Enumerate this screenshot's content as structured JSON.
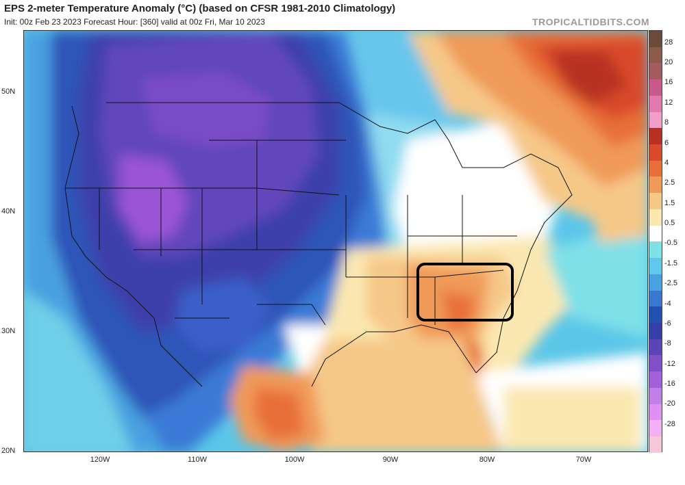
{
  "header": {
    "title": "EPS 2-meter Temperature Anomaly (°C) (based on CFSR 1981-2010 Climatology)",
    "subtitle": "Init: 00z Feb 23 2023   Forecast Hour: [360]   valid at 00z Fri, Mar 10 2023",
    "credit": "TROPICALTIDBITS.COM"
  },
  "axes": {
    "lat_labels": [
      "50N",
      "40N",
      "30N",
      "20N"
    ],
    "lon_labels": [
      "120W",
      "110W",
      "100W",
      "90W",
      "80W",
      "70W"
    ]
  },
  "colorbar": {
    "labels": [
      "28",
      "20",
      "16",
      "12",
      "8",
      "6",
      "4",
      "2.5",
      "1.5",
      "0.5",
      "-0.5",
      "-1.5",
      "-2.5",
      "-4",
      "-6",
      "-8",
      "-12",
      "-16",
      "-20",
      "-28"
    ],
    "colors": [
      "#6b4a3a",
      "#8c5a48",
      "#a35a60",
      "#c75a8a",
      "#e27ab0",
      "#f0a0c8",
      "#b83020",
      "#d84a2a",
      "#e87038",
      "#f09a58",
      "#f6c888",
      "#fbe8b0",
      "#ffffff",
      "#7fe0e8",
      "#60c8ea",
      "#4aa0e0",
      "#3878d0",
      "#2050b0",
      "#3440a8",
      "#5a44b8",
      "#8050c8",
      "#a060d8",
      "#c080e8",
      "#e090f0",
      "#f4b0f4",
      "#f4c8d8"
    ]
  },
  "annotation": {
    "box": "black-rounded-rectangle-over-southeast-us"
  }
}
